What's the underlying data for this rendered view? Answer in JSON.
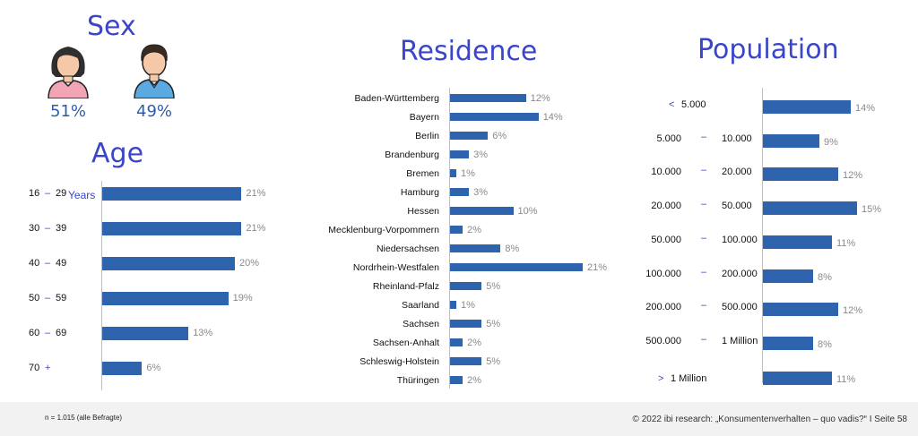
{
  "sex": {
    "title": "Sex",
    "female_pct": "51%",
    "male_pct": "49%"
  },
  "age": {
    "title": "Age",
    "years_label": "Years"
  },
  "residence": {
    "title": "Residence"
  },
  "population": {
    "title": "Population"
  },
  "footer": {
    "note": "n = 1.015 (alle Befragte)",
    "source": "© 2022 ibi research: „Konsumentenverhalten – quo vadis?“   I Seite 58"
  },
  "chart_data": [
    {
      "type": "bar",
      "title": "Age",
      "categories": [
        [
          "16",
          "29"
        ],
        [
          "30",
          "39"
        ],
        [
          "40",
          "49"
        ],
        [
          "50",
          "59"
        ],
        [
          "60",
          "69"
        ],
        [
          "70",
          "+"
        ]
      ],
      "values": [
        21,
        21,
        20,
        19,
        13,
        6
      ],
      "labels": [
        "21%",
        "21%",
        "20%",
        "19%",
        "13%",
        "6%"
      ]
    },
    {
      "type": "bar",
      "title": "Residence",
      "categories": [
        "Baden-Württemberg",
        "Bayern",
        "Berlin",
        "Brandenburg",
        "Bremen",
        "Hamburg",
        "Hessen",
        "Mecklenburg-Vorpommern",
        "Niedersachsen",
        "Nordrhein-Westfalen",
        "Rheinland-Pfalz",
        "Saarland",
        "Sachsen",
        "Sachsen-Anhalt",
        "Schleswig-Holstein",
        "Thüringen"
      ],
      "values": [
        12,
        14,
        6,
        3,
        1,
        3,
        10,
        2,
        8,
        21,
        5,
        1,
        5,
        2,
        5,
        2
      ],
      "labels": [
        "12%",
        "14%",
        "6%",
        "3%",
        "1%",
        "3%",
        "10%",
        "2%",
        "8%",
        "21%",
        "5%",
        "1%",
        "5%",
        "2%",
        "5%",
        "2%"
      ]
    },
    {
      "type": "bar",
      "title": "Population",
      "categories": [
        [
          "<",
          "5.000"
        ],
        [
          "5.000",
          "10.000"
        ],
        [
          "10.000",
          "20.000"
        ],
        [
          "20.000",
          "50.000"
        ],
        [
          "50.000",
          "100.000"
        ],
        [
          "100.000",
          "200.000"
        ],
        [
          "200.000",
          "500.000"
        ],
        [
          "500.000",
          "1 Million"
        ],
        [
          ">",
          "1 Million"
        ]
      ],
      "values": [
        14,
        9,
        12,
        15,
        11,
        8,
        12,
        8,
        11
      ],
      "labels": [
        "14%",
        "9%",
        "12%",
        "15%",
        "11%",
        "8%",
        "12%",
        "8%",
        "11%"
      ]
    }
  ]
}
